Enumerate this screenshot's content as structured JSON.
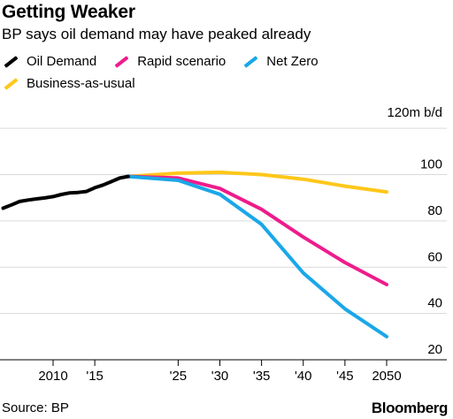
{
  "chart_data": {
    "type": "line",
    "title": "Getting Weaker",
    "subtitle": "BP says oil demand may have peaked already",
    "ylabel": "120m b/d",
    "ylim": [
      10,
      120
    ],
    "yticks": [
      20,
      40,
      60,
      80,
      100
    ],
    "xlim": [
      2005,
      2050
    ],
    "xticks": [
      {
        "x": 2010,
        "label": "2010"
      },
      {
        "x": 2015,
        "label": "'15"
      },
      {
        "x": 2025,
        "label": "'25"
      },
      {
        "x": 2030,
        "label": "'30"
      },
      {
        "x": 2035,
        "label": "'35"
      },
      {
        "x": 2040,
        "label": "'40"
      },
      {
        "x": 2045,
        "label": "'45"
      },
      {
        "x": 2050,
        "label": "2050"
      }
    ],
    "grid": true,
    "legend_position": "top-left",
    "series": [
      {
        "name": "Oil Demand",
        "color": "#000000",
        "x": [
          2004,
          2005,
          2006,
          2007,
          2008,
          2009,
          2010,
          2011,
          2012,
          2013,
          2014,
          2015,
          2016,
          2017,
          2018,
          2019
        ],
        "y": [
          85.5,
          86.9,
          88.4,
          89.0,
          89.5,
          89.9,
          90.5,
          91.4,
          92.1,
          92.3,
          92.7,
          94.3,
          95.5,
          97.0,
          98.5,
          99.2
        ]
      },
      {
        "name": "Rapid scenario",
        "color": "#ee1c8c",
        "x": [
          2019,
          2025,
          2030,
          2035,
          2040,
          2045,
          2050
        ],
        "y": [
          99.2,
          98.5,
          94.0,
          85.0,
          73.0,
          62.0,
          52.5
        ]
      },
      {
        "name": "Net Zero",
        "color": "#1aa7e8",
        "x": [
          2019,
          2025,
          2030,
          2035,
          2040,
          2045,
          2050
        ],
        "y": [
          99.2,
          97.5,
          91.5,
          78.5,
          57.5,
          42.0,
          30.0
        ]
      },
      {
        "name": "Business-as-usual",
        "color": "#ffc71a",
        "x": [
          2019,
          2025,
          2030,
          2035,
          2040,
          2045,
          2050
        ],
        "y": [
          99.2,
          100.6,
          101.0,
          100.0,
          98.0,
          95.0,
          92.5
        ]
      }
    ],
    "source": "Source: BP",
    "brand": "Bloomberg"
  }
}
